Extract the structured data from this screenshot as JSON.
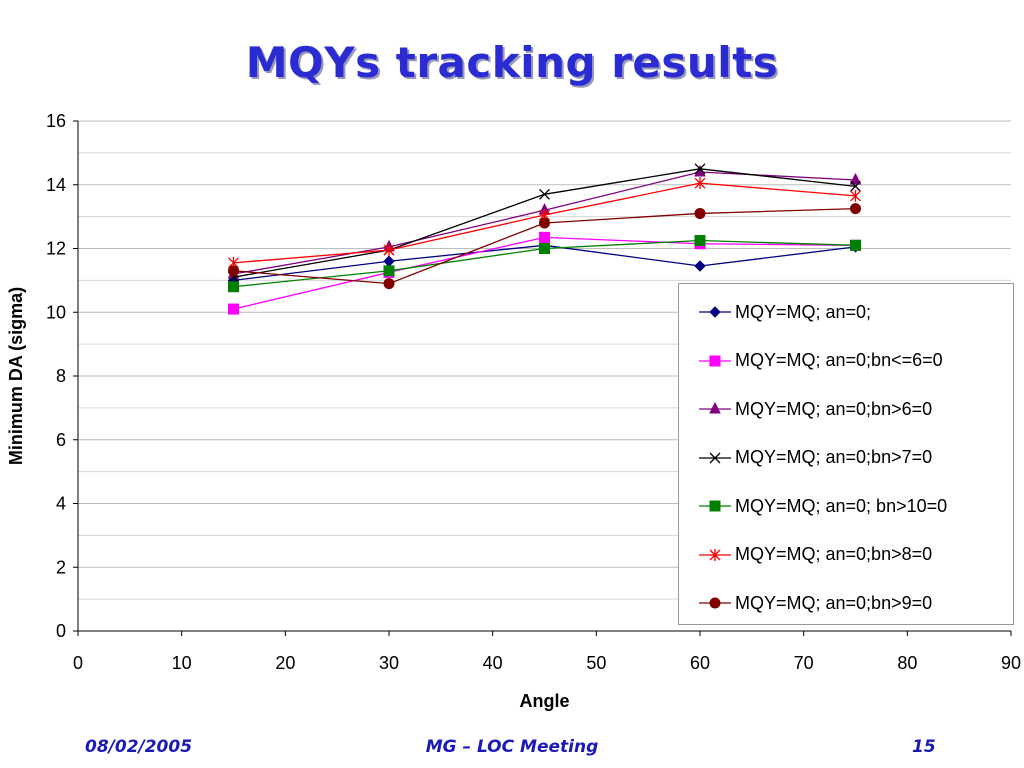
{
  "slide": {
    "title": "MQYs tracking results",
    "footer_date": "08/02/2005",
    "footer_meeting": "MG – LOC Meeting",
    "footer_page": "15"
  },
  "chart_data": {
    "type": "line",
    "xlabel": "Angle",
    "ylabel": "Minimum DA (sigma)",
    "xlim": [
      0,
      90
    ],
    "ylim": [
      0,
      16
    ],
    "x_ticks": [
      0,
      10,
      20,
      30,
      40,
      50,
      60,
      70,
      80,
      90
    ],
    "y_ticks": [
      0,
      2,
      4,
      6,
      8,
      10,
      12,
      14,
      16
    ],
    "grid": "horizontal",
    "legend_position": "right-middle",
    "series": [
      {
        "name": "MQY=MQ; an=0;",
        "color": "#000080",
        "marker": "diamond",
        "x": [
          15,
          30,
          45,
          60,
          75
        ],
        "y": [
          11.0,
          11.6,
          12.1,
          11.45,
          12.05
        ]
      },
      {
        "name": "MQY=MQ; an=0;bn<=6=0",
        "color": "#ff00ff",
        "marker": "square",
        "x": [
          15,
          30,
          45,
          60,
          75
        ],
        "y": [
          10.1,
          11.25,
          12.35,
          12.15,
          12.1
        ]
      },
      {
        "name": "MQY=MQ; an=0;bn>6=0",
        "color": "#800080",
        "marker": "triangle",
        "x": [
          15,
          30,
          45,
          60,
          75
        ],
        "y": [
          11.2,
          12.05,
          13.2,
          14.4,
          14.15
        ]
      },
      {
        "name": "MQY=MQ; an=0;bn>7=0",
        "color": "#000000",
        "marker": "x",
        "x": [
          15,
          30,
          45,
          60,
          75
        ],
        "y": [
          11.1,
          11.95,
          13.7,
          14.5,
          13.95
        ]
      },
      {
        "name": "MQY=MQ; an=0; bn>10=0",
        "color": "#008000",
        "marker": "square",
        "x": [
          15,
          30,
          45,
          60,
          75
        ],
        "y": [
          10.8,
          11.3,
          12.0,
          12.25,
          12.1
        ]
      },
      {
        "name": "MQY=MQ; an=0;bn>8=0",
        "color": "#ff0000",
        "marker": "asterisk",
        "x": [
          15,
          30,
          45,
          60,
          75
        ],
        "y": [
          11.55,
          11.95,
          13.05,
          14.05,
          13.65
        ]
      },
      {
        "name": "MQY=MQ; an=0;bn>9=0",
        "color": "#800000",
        "marker": "circle",
        "x": [
          15,
          30,
          45,
          60,
          75
        ],
        "y": [
          11.3,
          10.9,
          12.8,
          13.1,
          13.25
        ]
      }
    ]
  }
}
